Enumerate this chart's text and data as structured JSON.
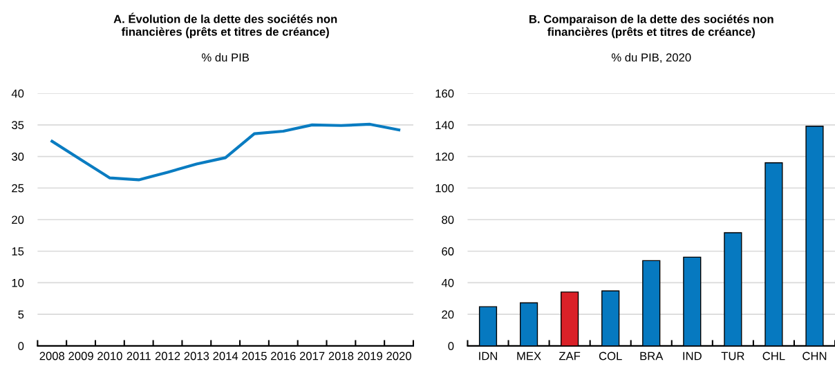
{
  "chart_data": [
    {
      "type": "line",
      "title": "A. Évolution de la dette des sociétés non\nfinancières (prêts et titres de créance)",
      "subtitle": "% du PIB",
      "categories": [
        "2008",
        "2009",
        "2010",
        "2011",
        "2012",
        "2013",
        "2014",
        "2015",
        "2016",
        "2017",
        "2018",
        "2019",
        "2020"
      ],
      "series": [
        {
          "color": "#0a7cc1",
          "values": [
            32.4,
            29.5,
            26.6,
            26.3,
            27.5,
            28.8,
            29.8,
            33.6,
            34.0,
            35.0,
            34.9,
            35.1,
            34.2
          ]
        }
      ],
      "ylim": [
        0,
        40
      ],
      "yticks": [
        0,
        5,
        10,
        15,
        20,
        25,
        30,
        35,
        40
      ],
      "grid": "y",
      "marker": "none",
      "line_style": "solid"
    },
    {
      "type": "bar",
      "title": "B. Comparaison de la dette des sociétés non\nfinancières (prêts et titres de créance)",
      "subtitle": "% du PIB, 2020",
      "categories": [
        "IDN",
        "MEX",
        "ZAF",
        "COL",
        "BRA",
        "IND",
        "TUR",
        "CHL",
        "CHN"
      ],
      "values": [
        24.8,
        27.3,
        34.1,
        34.8,
        54.0,
        56.2,
        71.7,
        116,
        139.2
      ],
      "colors": [
        "#0679c0",
        "#0679c0",
        "#da2128",
        "#0679c0",
        "#0679c0",
        "#0679c0",
        "#0679c0",
        "#0679c0",
        "#0679c0"
      ],
      "ylim": [
        0,
        160
      ],
      "yticks": [
        0,
        20,
        40,
        60,
        80,
        100,
        120,
        140,
        160
      ],
      "grid": "y"
    }
  ]
}
